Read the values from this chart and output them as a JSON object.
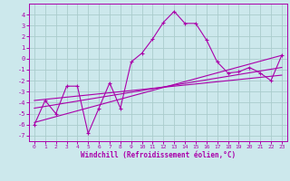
{
  "xlabel": "Windchill (Refroidissement éolien,°C)",
  "bg_color": "#cce8ec",
  "line_color": "#aa00aa",
  "grid_color": "#aacccc",
  "xlim": [
    -0.5,
    23.5
  ],
  "ylim": [
    -7.5,
    5.0
  ],
  "xticks": [
    0,
    1,
    2,
    3,
    4,
    5,
    6,
    7,
    8,
    9,
    10,
    11,
    12,
    13,
    14,
    15,
    16,
    17,
    18,
    19,
    20,
    21,
    22,
    23
  ],
  "yticks": [
    -7,
    -6,
    -5,
    -4,
    -3,
    -2,
    -1,
    0,
    1,
    2,
    3,
    4
  ],
  "series1_x": [
    0,
    1,
    2,
    3,
    4,
    5,
    6,
    7,
    8,
    9,
    10,
    11,
    12,
    13,
    14,
    15,
    16,
    17,
    18,
    19,
    20,
    21,
    22,
    23
  ],
  "series1_y": [
    -6.0,
    -3.8,
    -5.0,
    -2.5,
    -2.5,
    -6.8,
    -4.5,
    -2.2,
    -4.5,
    -0.3,
    0.5,
    1.8,
    3.3,
    4.3,
    3.2,
    3.2,
    1.7,
    -0.3,
    -1.3,
    -1.2,
    -0.8,
    -1.3,
    -2.0,
    0.3
  ],
  "series2_x": [
    0,
    23
  ],
  "series2_y": [
    -5.8,
    0.3
  ],
  "series3_x": [
    0,
    23
  ],
  "series3_y": [
    -4.5,
    -0.8
  ],
  "series4_x": [
    0,
    23
  ],
  "series4_y": [
    -3.8,
    -1.5
  ]
}
